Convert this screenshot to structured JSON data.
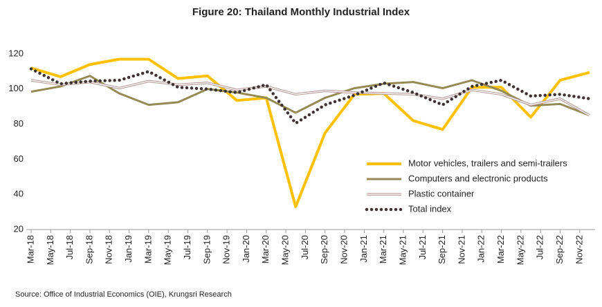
{
  "chart_data": {
    "type": "line",
    "title": "Figure 20: Thailand Monthly Industrial Index",
    "source": "Source: Office of Industrial Economics (OIE), Krungsri Research",
    "x": [
      "2018-03",
      "2018-06",
      "2018-09",
      "2018-12",
      "2019-03",
      "2019-06",
      "2019-09",
      "2019-12",
      "2020-03",
      "2020-06",
      "2020-09",
      "2020-12",
      "2021-03",
      "2021-06",
      "2021-09",
      "2021-12",
      "2022-03",
      "2022-06",
      "2022-09",
      "2022-12"
    ],
    "xlim": [
      "2018-03",
      "2022-12"
    ],
    "xticks": [
      {
        "value": "2018-03",
        "label": "Mar-18"
      },
      {
        "value": "2018-05",
        "label": "May-18"
      },
      {
        "value": "2018-07",
        "label": "Jul-18"
      },
      {
        "value": "2018-09",
        "label": "Sep-18"
      },
      {
        "value": "2018-11",
        "label": "Nov-18"
      },
      {
        "value": "2019-01",
        "label": "Jan-19"
      },
      {
        "value": "2019-03",
        "label": "Mar-19"
      },
      {
        "value": "2019-05",
        "label": "May-19"
      },
      {
        "value": "2019-07",
        "label": "Jul-19"
      },
      {
        "value": "2019-09",
        "label": "Sep-19"
      },
      {
        "value": "2019-11",
        "label": "Nov-19"
      },
      {
        "value": "2020-01",
        "label": "Jan-20"
      },
      {
        "value": "2020-03",
        "label": "Mar-20"
      },
      {
        "value": "2020-05",
        "label": "May-20"
      },
      {
        "value": "2020-07",
        "label": "Jul-20"
      },
      {
        "value": "2020-09",
        "label": "Sep-20"
      },
      {
        "value": "2020-11",
        "label": "Nov-20"
      },
      {
        "value": "2021-01",
        "label": "Jan-21"
      },
      {
        "value": "2021-03",
        "label": "Mar-21"
      },
      {
        "value": "2021-05",
        "label": "May-21"
      },
      {
        "value": "2021-07",
        "label": "Jul-21"
      },
      {
        "value": "2021-09",
        "label": "Sep-21"
      },
      {
        "value": "2021-11",
        "label": "Nov-21"
      },
      {
        "value": "2022-01",
        "label": "Jan-22"
      },
      {
        "value": "2022-03",
        "label": "Mar-22"
      },
      {
        "value": "2022-05",
        "label": "May-22"
      },
      {
        "value": "2022-07",
        "label": "Jul-22"
      },
      {
        "value": "2022-09",
        "label": "Sep-22"
      },
      {
        "value": "2022-11",
        "label": "Nov-22"
      }
    ],
    "ylim": [
      20,
      120
    ],
    "yticks": [
      20,
      40,
      60,
      80,
      100,
      120
    ],
    "grid": false,
    "legend": "right",
    "series": [
      {
        "name": "Motor vehicles, trailers and semi-trailers",
        "color": "#ffc000",
        "style": "solid",
        "values": [
          112,
          107,
          114,
          117,
          117,
          106,
          107.5,
          93.5,
          95,
          33,
          75,
          97,
          97.5,
          82,
          77,
          101,
          101,
          84,
          105,
          109.5
        ]
      },
      {
        "name": "Computers and electronic products",
        "color": "#948a54",
        "style": "solid",
        "values": [
          98.5,
          101.5,
          107.5,
          97.5,
          91,
          92.5,
          100,
          98,
          95,
          86.5,
          95,
          100.5,
          103,
          104,
          100.5,
          105,
          99,
          90.5,
          91.5,
          85
        ]
      },
      {
        "name": "Plastic container",
        "color": "#b89a9a",
        "style": "double",
        "values": [
          105,
          102.5,
          104,
          100.5,
          104.5,
          102.5,
          103.5,
          99.5,
          101.5,
          97,
          99,
          98,
          97.5,
          97,
          94.5,
          99.5,
          97,
          91,
          94.5,
          85
        ]
      },
      {
        "name": "Total index",
        "color": "#3d3333",
        "style": "dotted",
        "values": [
          111.5,
          103,
          104.5,
          105,
          110,
          101,
          100,
          98,
          102.5,
          80.5,
          91,
          96.5,
          103.5,
          98,
          91,
          101.5,
          105,
          96,
          97,
          94.5
        ]
      }
    ]
  }
}
